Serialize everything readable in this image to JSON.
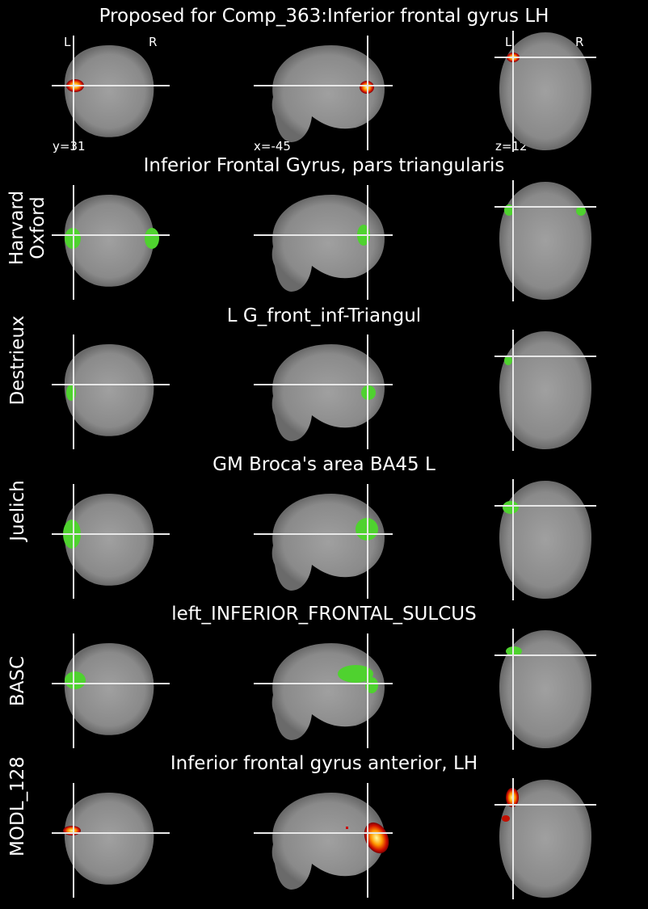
{
  "header": {
    "title": "Proposed for Comp_363:Inferior frontal gyrus LH",
    "orient_left": "L",
    "orient_right": "R",
    "coord_y": "y=31",
    "coord_x": "x=-45",
    "coord_z": "z=12"
  },
  "rows": [
    {
      "label": "Proposed",
      "region": "Inferior frontal gyrus LH",
      "overlay": "heat"
    },
    {
      "label": "Harvard\nOxford",
      "region": "Inferior Frontal Gyrus, pars triangularis",
      "overlay": "green"
    },
    {
      "label": "Destrieux",
      "region": "L G_front_inf-Triangul",
      "overlay": "green"
    },
    {
      "label": "Juelich",
      "region": "GM Broca's area BA45 L",
      "overlay": "green"
    },
    {
      "label": "BASC",
      "region": "left_INFERIOR_FRONTAL_SULCUS",
      "overlay": "green"
    },
    {
      "label": "MODL_128",
      "region": "Inferior frontal gyrus anterior, LH",
      "overlay": "heat"
    }
  ],
  "colors": {
    "background": "#000000",
    "text": "#ffffff",
    "brain": "#8c8c8c",
    "atlas": "#4fd22f",
    "heat_core": "#ffff80",
    "heat_edge": "#b00000"
  }
}
